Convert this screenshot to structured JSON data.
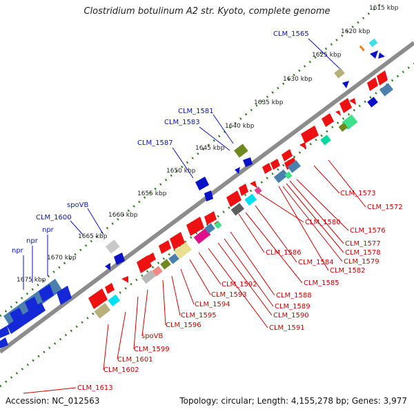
{
  "title": "Clostridium botulinum A2 str. Kyoto, complete genome",
  "footer": {
    "accession": "Accession: NC_012563",
    "summary": "Topology: circular; Length: 4,155,278 bp; Genes: 3,977"
  },
  "colors": {
    "backbone": "#8c8c8c",
    "ruler": "#2e7d1e",
    "forward_label": "#0a12c8",
    "reverse_label": "#cc0000"
  },
  "ticks": [
    "1615 kbp",
    "1620 kbp",
    "1625 kbp",
    "1630 kbp",
    "1635 kbp",
    "1640 kbp",
    "1645 kbp",
    "1650 kbp",
    "1655 kbp",
    "1660 kbp",
    "1665 kbp",
    "1670 kbp",
    "1675 kbp"
  ],
  "forward_labels": [
    "CLM_1565",
    "CLM_1581",
    "CLM_1583",
    "CLM_1587",
    "spoVB",
    "CLM_1600",
    "npr",
    "npr",
    "npr"
  ],
  "reverse_labels": [
    "CLM_1572",
    "CLM_1573",
    "CLM_1576",
    "CLM_1577",
    "CLM_1578",
    "CLM_1579",
    "CLM_1580",
    "CLM_1582",
    "CLM_1584",
    "CLM_1585",
    "CLM_1586",
    "CLM_1588",
    "CLM_1589",
    "CLM_1590",
    "CLM_1591",
    "CLM_1592",
    "CLM_1593",
    "CLM_1594",
    "CLM_1595",
    "CLM_1596",
    "spoVB",
    "CLM_1599",
    "CLM_1601",
    "CLM_1602",
    "CLM_1613"
  ]
}
